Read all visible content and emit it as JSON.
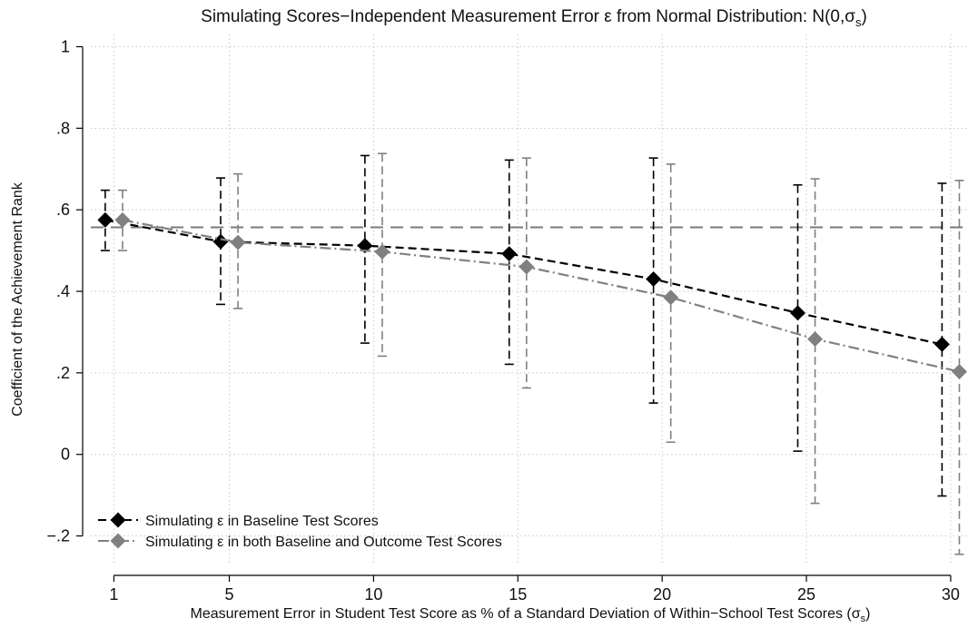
{
  "chart_data": {
    "type": "line",
    "title": "Simulating Scores−Independent Measurement Error ε from Normal Distribution: N(0,σ",
    "title_sub": "s",
    "title_end": ")",
    "xlabel": "Measurement Error in Student Test Score as % of a Standard Deviation of Within−School Test Scores (σ",
    "xlabel_sub": "s",
    "xlabel_end": ")",
    "ylabel": "Coefficient of the Achievement Rank",
    "xlim": [
      0.2,
      30.6
    ],
    "ylim": [
      -0.27,
      1.03
    ],
    "x_ticks": [
      1,
      5,
      10,
      15,
      20,
      25,
      30
    ],
    "x_tick_labels": [
      "1",
      "5",
      "10",
      "15",
      "20",
      "25",
      "30"
    ],
    "y_ticks": [
      -0.2,
      0,
      0.2,
      0.4,
      0.6,
      0.8,
      1
    ],
    "y_tick_labels": [
      "−.2",
      "0",
      ".2",
      ".4",
      ".6",
      ".8",
      "1"
    ],
    "grid": true,
    "reference_line": 0.557,
    "legend_position": "bottom-left",
    "series": [
      {
        "name": "Simulating ε in Baseline Test Scores",
        "color": "#000000",
        "x": [
          1,
          5,
          10,
          15,
          20,
          25,
          30
        ],
        "x_offset": -0.3,
        "y": [
          0.575,
          0.522,
          0.512,
          0.492,
          0.43,
          0.347,
          0.27
        ],
        "ci_low": [
          0.5,
          0.368,
          0.273,
          0.221,
          0.126,
          0.008,
          -0.102
        ],
        "ci_high": [
          0.648,
          0.678,
          0.733,
          0.722,
          0.727,
          0.661,
          0.665
        ]
      },
      {
        "name": "Simulating ε in both Baseline and Outcome Test Scores",
        "color": "#808080",
        "x": [
          1,
          5,
          10,
          15,
          20,
          25,
          30
        ],
        "x_offset": 0.3,
        "y": [
          0.575,
          0.52,
          0.497,
          0.46,
          0.385,
          0.283,
          0.203
        ],
        "ci_low": [
          0.5,
          0.358,
          0.241,
          0.163,
          0.03,
          -0.12,
          -0.245
        ],
        "ci_high": [
          0.648,
          0.688,
          0.738,
          0.727,
          0.712,
          0.676,
          0.672
        ]
      }
    ]
  }
}
